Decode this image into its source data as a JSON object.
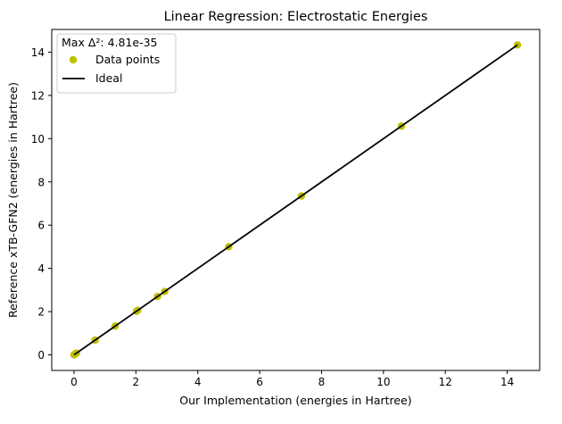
{
  "chart_data": {
    "type": "scatter",
    "title": "Linear Regression: Electrostatic Energies",
    "xlabel": "Our Implementation (energies in Hartree)",
    "ylabel": "Reference xTB-GFN2 (energies in Hartree)",
    "xlim": [
      -0.72,
      15.05
    ],
    "ylim": [
      -0.72,
      15.05
    ],
    "xticks": [
      0,
      2,
      4,
      6,
      8,
      10,
      12,
      14
    ],
    "yticks": [
      0,
      2,
      4,
      6,
      8,
      10,
      12,
      14
    ],
    "grid": false,
    "legend": {
      "title": "Max Δ²: 4.81e-35",
      "position": "top-left",
      "entries": [
        "Data points",
        "Ideal"
      ]
    },
    "series": [
      {
        "name": "Data points",
        "kind": "scatter",
        "color": "#bfbf00",
        "x": [
          0.0,
          0.02,
          0.04,
          0.06,
          0.08,
          0.68,
          1.33,
          2.02,
          2.06,
          2.7,
          2.93,
          5.0,
          7.35,
          10.58,
          14.33
        ],
        "y": [
          0.0,
          0.02,
          0.04,
          0.06,
          0.08,
          0.68,
          1.33,
          2.02,
          2.06,
          2.7,
          2.93,
          5.0,
          7.35,
          10.58,
          14.33
        ]
      },
      {
        "name": "Ideal",
        "kind": "line",
        "color": "#000000",
        "x": [
          0.0,
          14.33
        ],
        "y": [
          0.0,
          14.33
        ]
      }
    ]
  }
}
